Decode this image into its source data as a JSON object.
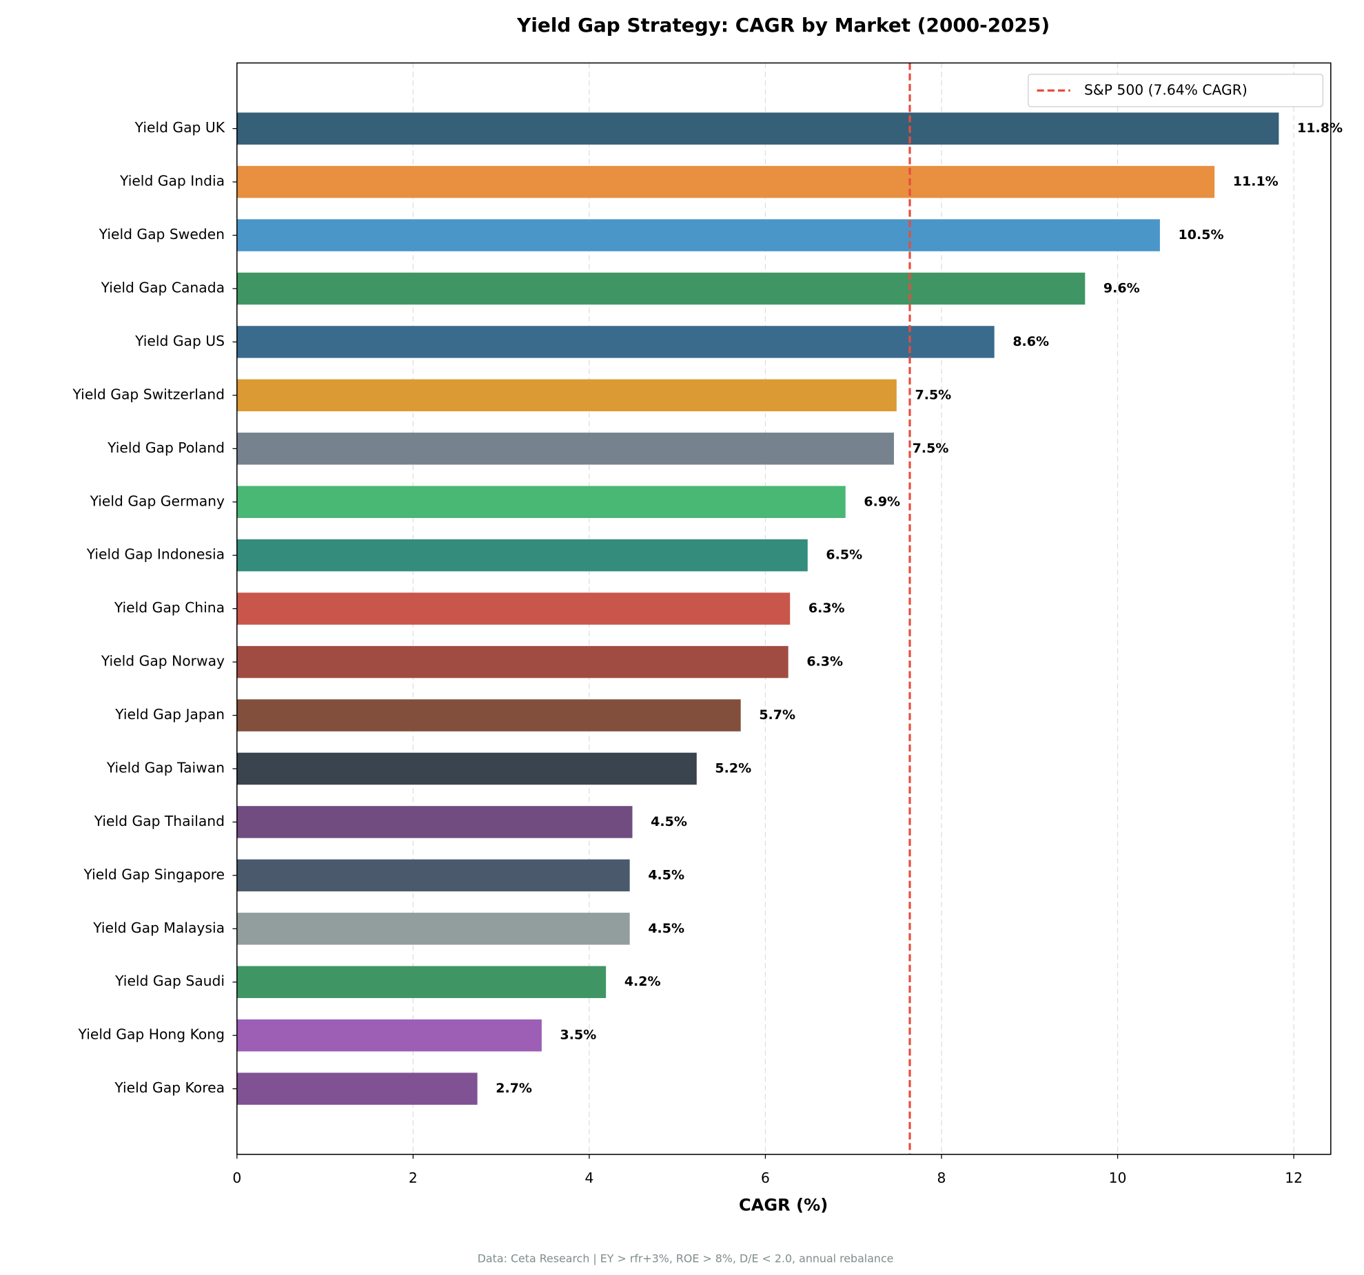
{
  "chart_data": {
    "type": "barh",
    "title": "Yield Gap Strategy: CAGR by Market (2000-2025)",
    "xlabel": "CAGR (%)",
    "footnote": "Data: Ceta Research | EY > rfr+3%, ROE > 8%, D/E < 2.0, annual rebalance",
    "categories": [
      "Yield Gap UK",
      "Yield Gap India",
      "Yield Gap Sweden",
      "Yield Gap Canada",
      "Yield Gap US",
      "Yield Gap Switzerland",
      "Yield Gap Poland",
      "Yield Gap Germany",
      "Yield Gap Indonesia",
      "Yield Gap China",
      "Yield Gap Norway",
      "Yield Gap Japan",
      "Yield Gap Taiwan",
      "Yield Gap Thailand",
      "Yield Gap Singapore",
      "Yield Gap Malaysia",
      "Yield Gap Saudi",
      "Yield Gap Hong Kong",
      "Yield Gap Korea"
    ],
    "values": [
      11.83,
      11.1,
      10.48,
      9.63,
      8.6,
      7.49,
      7.46,
      6.91,
      6.48,
      6.28,
      6.26,
      5.72,
      5.22,
      4.49,
      4.46,
      4.46,
      4.19,
      3.46,
      2.73
    ],
    "value_labels": [
      "11.8%",
      "11.1%",
      "10.5%",
      "9.6%",
      "8.6%",
      "7.5%",
      "7.5%",
      "6.9%",
      "6.5%",
      "6.3%",
      "6.3%",
      "5.7%",
      "5.2%",
      "4.5%",
      "4.5%",
      "4.5%",
      "4.2%",
      "3.5%",
      "2.7%"
    ],
    "colors": [
      "#365f78",
      "#e88f40",
      "#4a96c8",
      "#3f9664",
      "#3a6b8c",
      "#db9a33",
      "#76838f",
      "#48b874",
      "#348c7c",
      "#c9564b",
      "#a14c42",
      "#814f3c",
      "#39444e",
      "#704c80",
      "#4a5a6c",
      "#919e9d",
      "#3f9664",
      "#9d5fb6",
      "#805293"
    ],
    "xlim": [
      0,
      12.42
    ],
    "xticks": [
      0,
      2,
      4,
      6,
      8,
      10,
      12
    ],
    "grid": true,
    "reference_line": {
      "value": 7.64,
      "label": "S&P 500 (7.64% CAGR)",
      "color": "#e74c3c"
    },
    "legend": "upper right"
  }
}
